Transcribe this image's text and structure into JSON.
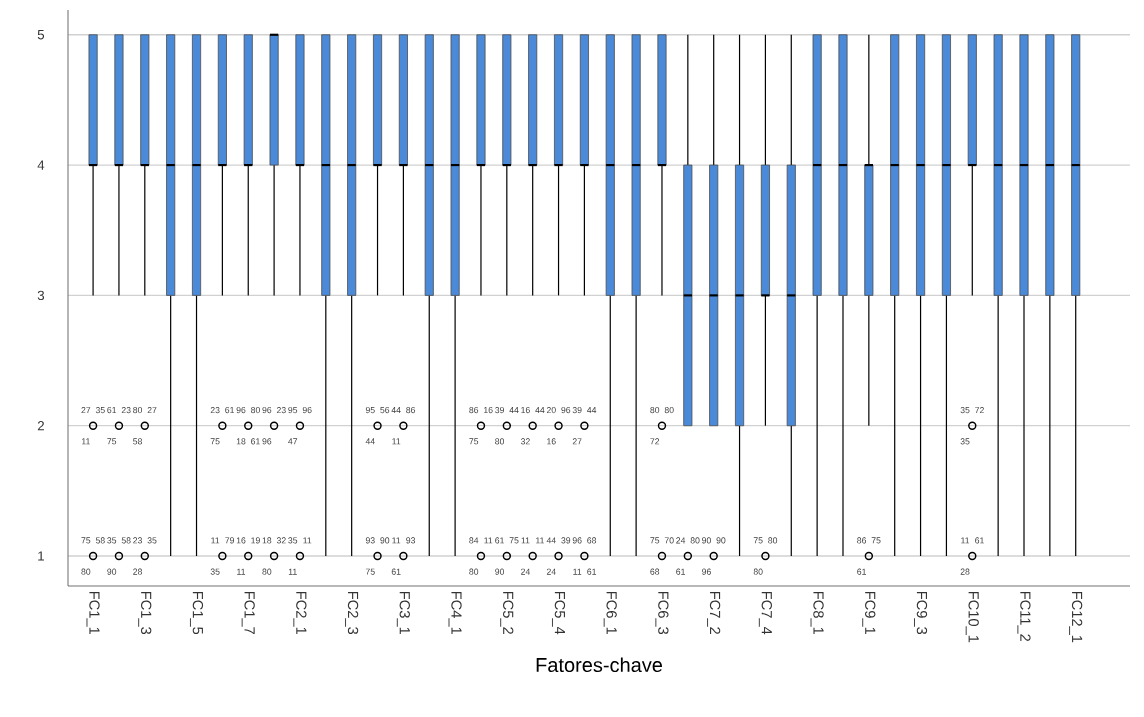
{
  "chart_data": {
    "type": "box",
    "xlabel": "Fatores-chave",
    "color": "#4a8ad8",
    "grid": "y",
    "marker": "circle",
    "ylim": [
      0.77,
      5.19
    ],
    "yticks": [
      1,
      2,
      3,
      4,
      5
    ],
    "categories": [
      "FC1_1",
      null,
      "FC1_3",
      null,
      "FC1_5",
      null,
      "FC1_7",
      null,
      "FC2_1",
      null,
      "FC2_3",
      null,
      "FC3_1",
      null,
      "FC4_1",
      null,
      "FC5_2",
      null,
      "FC5_4",
      null,
      "FC6_1",
      null,
      "FC6_3",
      null,
      "FC7_2",
      null,
      "FC7_4",
      null,
      "FC8_1",
      null,
      "FC9_1",
      null,
      "FC9_3",
      null,
      "FC10_1",
      null,
      "FC11_2",
      null,
      "FC12_1"
    ],
    "boxes": [
      {
        "low": 3,
        "q1": 4,
        "median": 4,
        "q3": 5,
        "high": 5,
        "outliers": [
          2,
          1
        ]
      },
      {
        "low": 3,
        "q1": 4,
        "median": 4,
        "q3": 5,
        "high": 5,
        "outliers": [
          2,
          1
        ]
      },
      {
        "low": 3,
        "q1": 4,
        "median": 4,
        "q3": 5,
        "high": 5,
        "outliers": [
          2,
          1
        ]
      },
      {
        "low": 1,
        "q1": 3,
        "median": 4,
        "q3": 5,
        "high": 5
      },
      {
        "low": 1,
        "q1": 3,
        "median": 4,
        "q3": 5,
        "high": 5
      },
      {
        "low": 3,
        "q1": 4,
        "median": 4,
        "q3": 5,
        "high": 5,
        "outliers": [
          2,
          1
        ]
      },
      {
        "low": 3,
        "q1": 4,
        "median": 4,
        "q3": 5,
        "high": 5,
        "outliers": [
          2,
          1
        ]
      },
      {
        "low": 3,
        "q1": 4,
        "median": 5,
        "q3": 5,
        "high": 5,
        "outliers": [
          2,
          1
        ]
      },
      {
        "low": 3,
        "q1": 4,
        "median": 4,
        "q3": 5,
        "high": 5,
        "outliers": [
          2,
          1
        ]
      },
      {
        "low": 1,
        "q1": 3,
        "median": 4,
        "q3": 5,
        "high": 5
      },
      {
        "low": 1,
        "q1": 3,
        "median": 4,
        "q3": 5,
        "high": 5
      },
      {
        "low": 3,
        "q1": 4,
        "median": 4,
        "q3": 5,
        "high": 5,
        "outliers": [
          2,
          1
        ]
      },
      {
        "low": 3,
        "q1": 4,
        "median": 4,
        "q3": 5,
        "high": 5,
        "outliers": [
          2,
          1
        ]
      },
      {
        "low": 1,
        "q1": 3,
        "median": 4,
        "q3": 5,
        "high": 5
      },
      {
        "low": 1,
        "q1": 3,
        "median": 4,
        "q3": 5,
        "high": 5
      },
      {
        "low": 3,
        "q1": 4,
        "median": 4,
        "q3": 5,
        "high": 5,
        "outliers": [
          2,
          1
        ]
      },
      {
        "low": 3,
        "q1": 4,
        "median": 4,
        "q3": 5,
        "high": 5,
        "outliers": [
          2,
          1
        ]
      },
      {
        "low": 3,
        "q1": 4,
        "median": 4,
        "q3": 5,
        "high": 5,
        "outliers": [
          2,
          1
        ]
      },
      {
        "low": 3,
        "q1": 4,
        "median": 4,
        "q3": 5,
        "high": 5,
        "outliers": [
          2,
          1
        ]
      },
      {
        "low": 3,
        "q1": 4,
        "median": 4,
        "q3": 5,
        "high": 5,
        "outliers": [
          2,
          1
        ]
      },
      {
        "low": 1,
        "q1": 3,
        "median": 4,
        "q3": 5,
        "high": 5
      },
      {
        "low": 1,
        "q1": 3,
        "median": 4,
        "q3": 5,
        "high": 5
      },
      {
        "low": 3,
        "q1": 4,
        "median": 4,
        "q3": 5,
        "high": 5,
        "outliers": [
          2,
          1
        ]
      },
      {
        "low": 2,
        "q1": 2,
        "median": 3,
        "q3": 4,
        "high": 5,
        "outliers": [
          1
        ]
      },
      {
        "low": 2,
        "q1": 2,
        "median": 3,
        "q3": 4,
        "high": 5,
        "outliers": [
          1
        ]
      },
      {
        "low": 1,
        "q1": 2,
        "median": 3,
        "q3": 4,
        "high": 5
      },
      {
        "low": 2,
        "q1": 3,
        "median": 3,
        "q3": 4,
        "high": 5,
        "outliers": [
          1
        ]
      },
      {
        "low": 1,
        "q1": 2,
        "median": 3,
        "q3": 4,
        "high": 5
      },
      {
        "low": 1,
        "q1": 3,
        "median": 4,
        "q3": 5,
        "high": 5
      },
      {
        "low": 1,
        "q1": 3,
        "median": 4,
        "q3": 5,
        "high": 5
      },
      {
        "low": 2,
        "q1": 3,
        "median": 4,
        "q3": 4,
        "high": 5,
        "outliers": [
          1
        ]
      },
      {
        "low": 1,
        "q1": 3,
        "median": 4,
        "q3": 5,
        "high": 5
      },
      {
        "low": 1,
        "q1": 3,
        "median": 4,
        "q3": 5,
        "high": 5
      },
      {
        "low": 1,
        "q1": 3,
        "median": 4,
        "q3": 5,
        "high": 5
      },
      {
        "low": 3,
        "q1": 4,
        "median": 4,
        "q3": 5,
        "high": 5,
        "outliers": [
          2,
          1
        ]
      },
      {
        "low": 1,
        "q1": 3,
        "median": 4,
        "q3": 5,
        "high": 5
      },
      {
        "low": 1,
        "q1": 3,
        "median": 4,
        "q3": 5,
        "high": 5
      },
      {
        "low": 1,
        "q1": 3,
        "median": 4,
        "q3": 5,
        "high": 5
      },
      {
        "low": 1,
        "q1": 3,
        "median": 4,
        "q3": 5,
        "high": 5
      }
    ],
    "annotations": [
      "27",
      "35",
      "11",
      "75",
      "58",
      "80",
      "61",
      "23",
      "75",
      "35",
      "58",
      "90",
      "80",
      "27",
      "58",
      "23",
      "35",
      "28",
      "23",
      "61",
      "75",
      "11",
      "79",
      "35",
      "96",
      "80",
      "18",
      "61",
      "16",
      "19",
      "11",
      "96",
      "23",
      "96",
      "18",
      "32",
      "80",
      "95",
      "96",
      "47",
      "35",
      "11",
      "11",
      "95",
      "56",
      "44",
      "93",
      "90",
      "75",
      "44",
      "86",
      "11",
      "11",
      "93",
      "61",
      "86",
      "16",
      "75",
      "84",
      "11",
      "80",
      "39",
      "44",
      "80",
      "61",
      "75",
      "90",
      "16",
      "44",
      "32",
      "11",
      "11",
      "24",
      "20",
      "96",
      "16",
      "44",
      "39",
      "24",
      "39",
      "44",
      "27",
      "96",
      "68",
      "11",
      "61",
      "80",
      "80",
      "72",
      "75",
      "70",
      "68",
      "24",
      "80",
      "61",
      "90",
      "90",
      "96",
      "75",
      "80",
      "80",
      "86",
      "75",
      "61",
      "35",
      "72",
      "35",
      "11",
      "61",
      "28"
    ]
  }
}
